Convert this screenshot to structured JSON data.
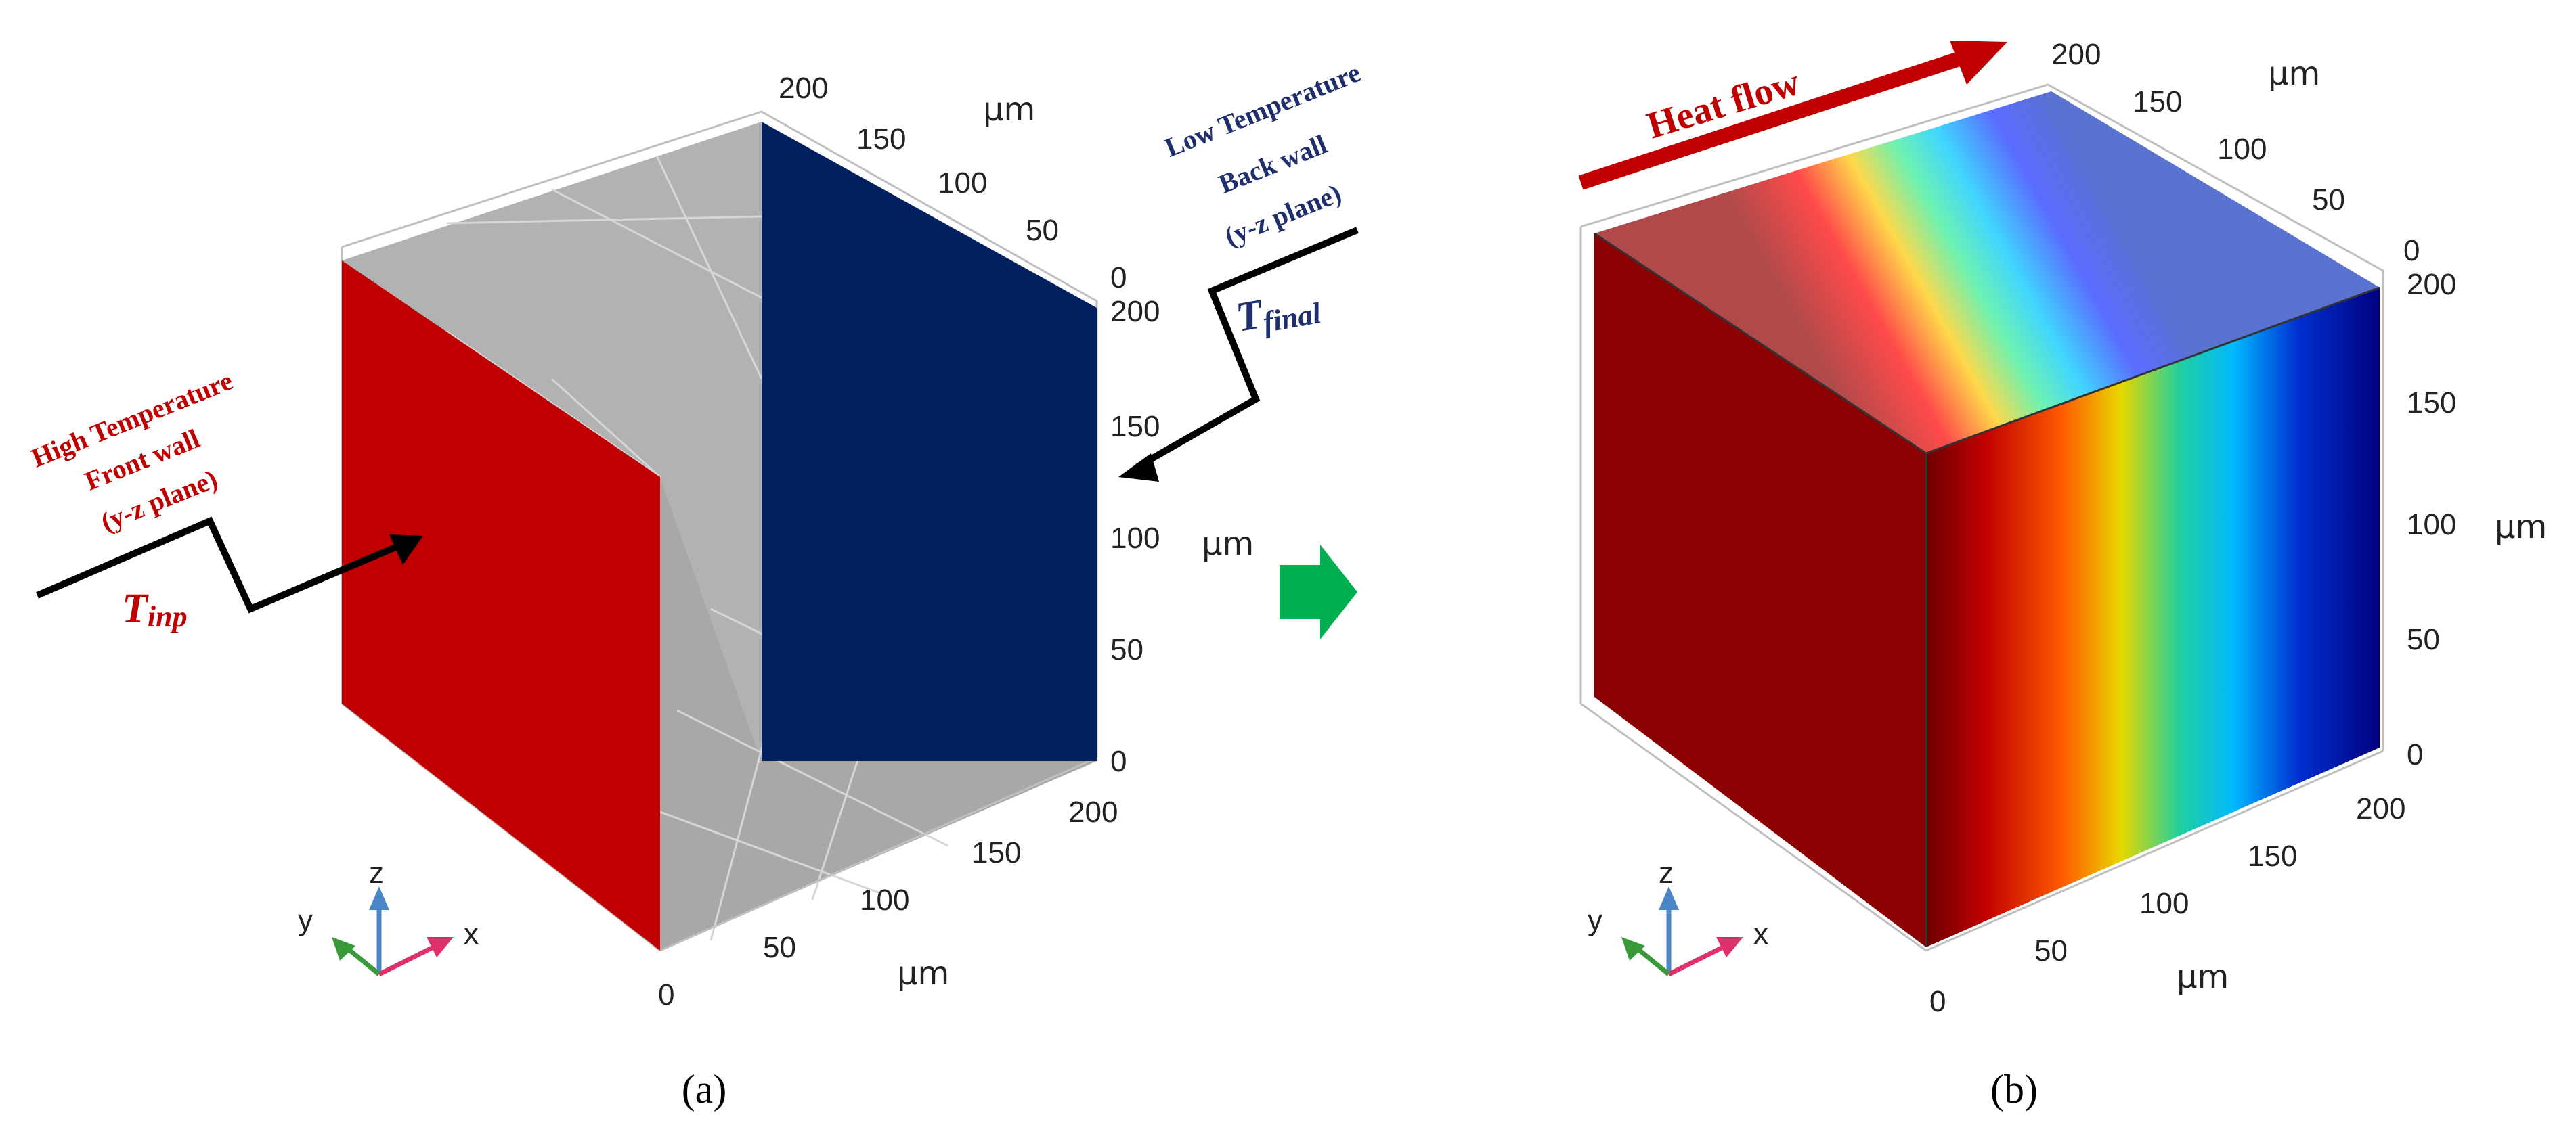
{
  "panel_a": {
    "caption": "(a)",
    "front_wall": [
      "High Temperature",
      "Front wall",
      "(y-z plane)"
    ],
    "back_wall": [
      "Low Temperature",
      "Back wall",
      "(y-z plane)"
    ],
    "t_inp": "T",
    "t_inp_sub": "inp",
    "t_final": "T",
    "t_final_sub": "final",
    "ticks_top": [
      "200",
      "150",
      "100",
      "50",
      "0"
    ],
    "ticks_vertical": [
      "200",
      "150",
      "100",
      "50",
      "0"
    ],
    "ticks_bottom": [
      "200",
      "150",
      "100",
      "50",
      "0"
    ],
    "unit_top": "μm",
    "unit_vertical": "μm",
    "unit_bottom": "μm",
    "triad": {
      "z": "z",
      "y": "y",
      "x": "x"
    }
  },
  "panel_b": {
    "caption": "(b)",
    "heat_flow": "Heat flow",
    "ticks_top": [
      "200",
      "150",
      "100",
      "50",
      "0"
    ],
    "ticks_vertical": [
      "200",
      "150",
      "100",
      "50",
      "0"
    ],
    "ticks_bottom": [
      "200",
      "150",
      "100",
      "50",
      "0"
    ],
    "unit_top": "μm",
    "unit_vertical": "μm",
    "unit_bottom": "μm",
    "triad": {
      "z": "z",
      "y": "y",
      "x": "x"
    }
  },
  "colors": {
    "hot": "#c00000",
    "cold": "#002060",
    "transition_arrow": "#00b050",
    "grid_gray": "#a9a9a9"
  }
}
